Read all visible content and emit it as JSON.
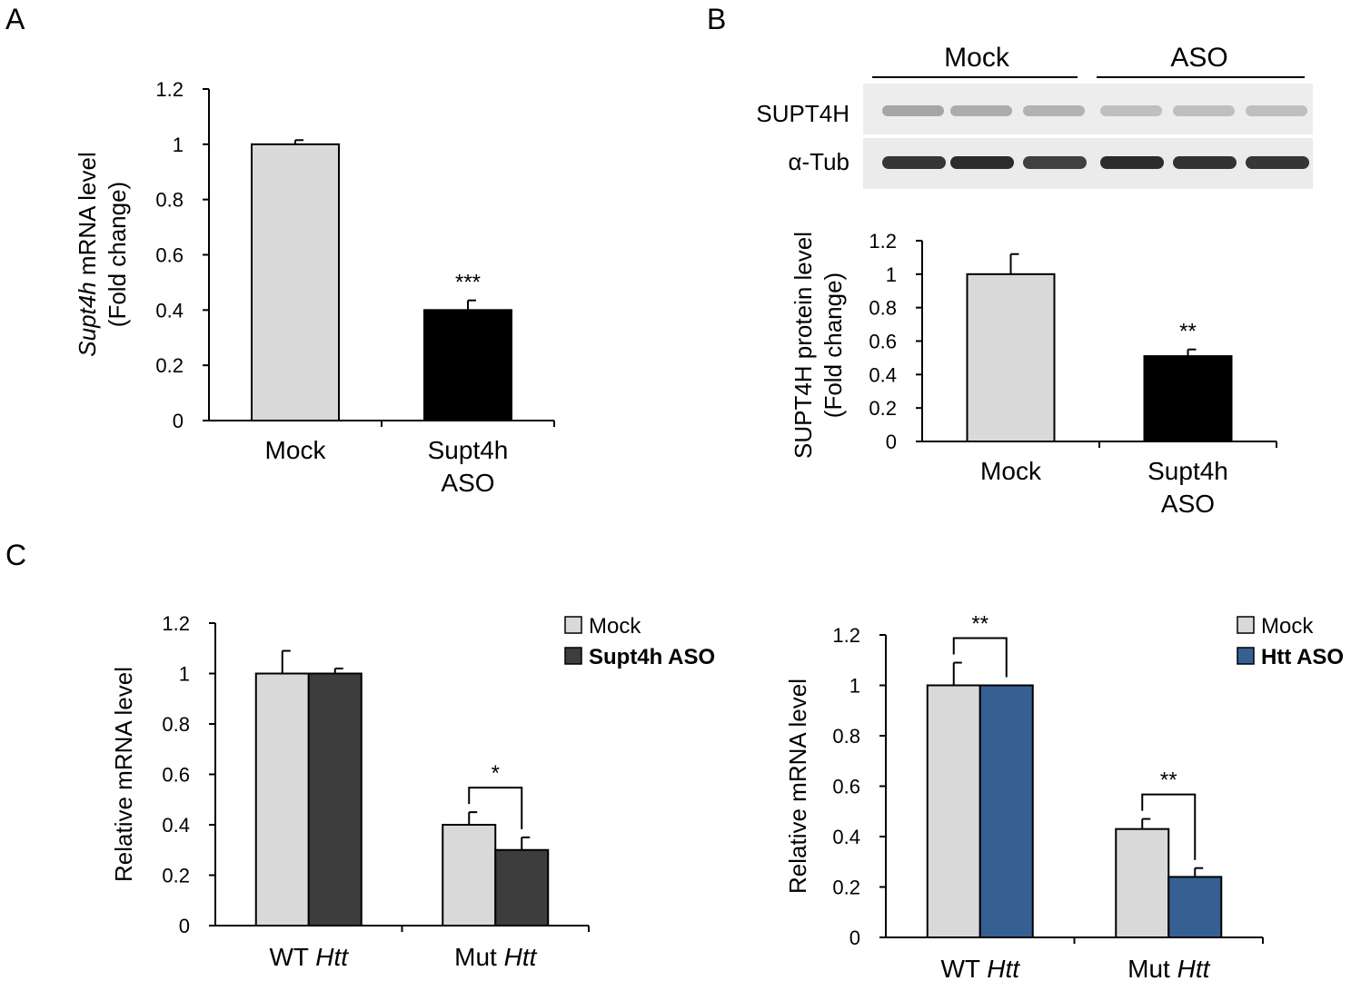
{
  "panels": {
    "A": {
      "letter": "A"
    },
    "B": {
      "letter": "B"
    },
    "C": {
      "letter": "C"
    }
  },
  "colors": {
    "mock": "#d9d9d9",
    "supt4h_aso_A": "#000000",
    "supt4h_aso_C": "#3d3d3d",
    "htt_aso": "#366092"
  },
  "blot": {
    "groups": [
      "Mock",
      "ASO"
    ],
    "rows": [
      "SUPT4H",
      "α-Tub"
    ]
  },
  "chart_data": [
    {
      "id": "A",
      "type": "bar",
      "categories": [
        [
          "Mock"
        ],
        [
          "Supt4h",
          "ASO"
        ]
      ],
      "values": [
        1.0,
        0.4
      ],
      "errors": [
        0.015,
        0.035
      ],
      "colors": [
        "#d9d9d9",
        "#000000"
      ],
      "significance": [
        "",
        "***"
      ],
      "ylabel_italic": "Supt4h",
      "ylabel_rest": " mRNA level",
      "ylabel_line2": "(Fold change)",
      "ylim": [
        0,
        1.2
      ],
      "yticks": [
        "0",
        "0.2",
        "0.4",
        "0.6",
        "0.8",
        "1",
        "1.2"
      ]
    },
    {
      "id": "B",
      "type": "bar",
      "categories": [
        [
          "Mock"
        ],
        [
          "Supt4h",
          "ASO"
        ]
      ],
      "values": [
        1.0,
        0.51
      ],
      "errors": [
        0.12,
        0.04
      ],
      "colors": [
        "#d9d9d9",
        "#000000"
      ],
      "significance": [
        "",
        "**"
      ],
      "ylabel_line1": "SUPT4H protein level",
      "ylabel_line2": "(Fold change)",
      "ylim": [
        0,
        1.2
      ],
      "yticks": [
        "0",
        "0.2",
        "0.4",
        "0.6",
        "0.8",
        "1",
        "1.2"
      ]
    },
    {
      "id": "C-left",
      "type": "bar",
      "groups": [
        {
          "plain": "WT ",
          "italic": "Htt"
        },
        {
          "plain": "Mut ",
          "italic": "Htt"
        }
      ],
      "series": [
        {
          "name": "Mock",
          "values": [
            1.0,
            0.4
          ],
          "errors": [
            0.09,
            0.05
          ],
          "color": "#d9d9d9"
        },
        {
          "name": "Supt4h ASO",
          "values": [
            1.0,
            0.3
          ],
          "errors": [
            0.02,
            0.05
          ],
          "color": "#3d3d3d"
        }
      ],
      "significance": [
        "",
        "*"
      ],
      "ylabel": "Relative mRNA level",
      "ylim": [
        0,
        1.2
      ],
      "yticks": [
        "0",
        "0.2",
        "0.4",
        "0.6",
        "0.8",
        "1",
        "1.2"
      ],
      "legend": "top-right"
    },
    {
      "id": "C-right",
      "type": "bar",
      "groups": [
        {
          "plain": "WT ",
          "italic": "Htt"
        },
        {
          "plain": "Mut ",
          "italic": "Htt"
        }
      ],
      "series": [
        {
          "name": "Mock",
          "values": [
            1.0,
            0.43
          ],
          "errors": [
            0.09,
            0.04
          ],
          "color": "#d9d9d9"
        },
        {
          "name": "Htt ASO",
          "values": [
            1.0,
            0.24
          ],
          "errors": [
            0.0,
            0.035
          ],
          "color": "#366092"
        }
      ],
      "significance": [
        "**",
        "**"
      ],
      "ylabel": "Relative mRNA level",
      "ylim": [
        0,
        1.2
      ],
      "yticks": [
        "0",
        "0.2",
        "0.4",
        "0.6",
        "0.8",
        "1",
        "1.2"
      ],
      "legend": "top-right"
    }
  ]
}
